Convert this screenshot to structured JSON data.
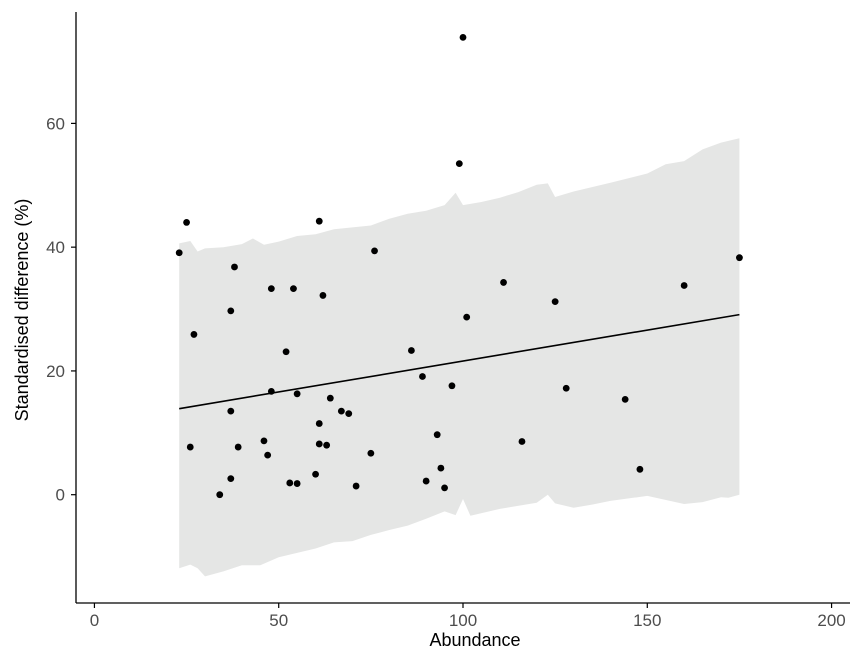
{
  "chart_data": {
    "type": "scatter",
    "title": "",
    "xlabel": "Abundance",
    "ylabel": "Standardised difference (%)",
    "xlim": [
      -5,
      205
    ],
    "ylim": [
      -17.5,
      78
    ],
    "xticks": [
      0,
      50,
      100,
      150,
      200
    ],
    "yticks": [
      0,
      20,
      40,
      60
    ],
    "grid": false,
    "colors": {
      "points": "#000000",
      "line": "#000000",
      "band": "#e5e6e5"
    },
    "points": [
      {
        "x": 23,
        "y": 39.1
      },
      {
        "x": 25,
        "y": 44.0
      },
      {
        "x": 26,
        "y": 7.7
      },
      {
        "x": 27,
        "y": 25.9
      },
      {
        "x": 34,
        "y": 0.0
      },
      {
        "x": 37,
        "y": 29.7
      },
      {
        "x": 37,
        "y": 13.5
      },
      {
        "x": 37,
        "y": 2.6
      },
      {
        "x": 38,
        "y": 36.8
      },
      {
        "x": 39,
        "y": 7.7
      },
      {
        "x": 46,
        "y": 8.7
      },
      {
        "x": 47,
        "y": 6.4
      },
      {
        "x": 48,
        "y": 33.3
      },
      {
        "x": 48,
        "y": 16.7
      },
      {
        "x": 52,
        "y": 23.1
      },
      {
        "x": 53,
        "y": 1.9
      },
      {
        "x": 54,
        "y": 33.3
      },
      {
        "x": 55,
        "y": 16.3
      },
      {
        "x": 55,
        "y": 1.8
      },
      {
        "x": 60,
        "y": 3.3
      },
      {
        "x": 61,
        "y": 44.2
      },
      {
        "x": 61,
        "y": 11.5
      },
      {
        "x": 61,
        "y": 8.2
      },
      {
        "x": 62,
        "y": 32.2
      },
      {
        "x": 63,
        "y": 8.0
      },
      {
        "x": 64,
        "y": 15.6
      },
      {
        "x": 67,
        "y": 13.5
      },
      {
        "x": 69,
        "y": 13.1
      },
      {
        "x": 71,
        "y": 1.4
      },
      {
        "x": 75,
        "y": 6.7
      },
      {
        "x": 76,
        "y": 39.4
      },
      {
        "x": 86,
        "y": 23.3
      },
      {
        "x": 89,
        "y": 19.1
      },
      {
        "x": 90,
        "y": 2.2
      },
      {
        "x": 93,
        "y": 9.7
      },
      {
        "x": 94,
        "y": 4.3
      },
      {
        "x": 95,
        "y": 1.1
      },
      {
        "x": 97,
        "y": 17.6
      },
      {
        "x": 99,
        "y": 53.5
      },
      {
        "x": 100,
        "y": 73.9
      },
      {
        "x": 101,
        "y": 28.7
      },
      {
        "x": 111,
        "y": 34.3
      },
      {
        "x": 116,
        "y": 8.6
      },
      {
        "x": 125,
        "y": 31.2
      },
      {
        "x": 128,
        "y": 17.2
      },
      {
        "x": 144,
        "y": 15.4
      },
      {
        "x": 148,
        "y": 4.1
      },
      {
        "x": 160,
        "y": 33.8
      },
      {
        "x": 175,
        "y": 38.3
      }
    ],
    "fit_line": {
      "x": [
        23,
        175
      ],
      "y": [
        13.9,
        29.1
      ]
    },
    "band": {
      "upper": [
        [
          23,
          40.6
        ],
        [
          26,
          41.0
        ],
        [
          28,
          39.3
        ],
        [
          30,
          39.8
        ],
        [
          35,
          40.0
        ],
        [
          40,
          40.5
        ],
        [
          43,
          41.4
        ],
        [
          46,
          40.4
        ],
        [
          50,
          40.9
        ],
        [
          55,
          41.8
        ],
        [
          60,
          42.1
        ],
        [
          65,
          42.9
        ],
        [
          70,
          43.2
        ],
        [
          75,
          43.5
        ],
        [
          80,
          44.6
        ],
        [
          85,
          45.4
        ],
        [
          90,
          45.9
        ],
        [
          95,
          46.8
        ],
        [
          98,
          48.8
        ],
        [
          100,
          46.8
        ],
        [
          105,
          47.3
        ],
        [
          110,
          48.0
        ],
        [
          115,
          48.9
        ],
        [
          120,
          50.1
        ],
        [
          123,
          50.3
        ],
        [
          125,
          48.1
        ],
        [
          130,
          49.0
        ],
        [
          140,
          50.4
        ],
        [
          150,
          51.9
        ],
        [
          155,
          53.4
        ],
        [
          160,
          53.9
        ],
        [
          165,
          55.8
        ],
        [
          170,
          56.9
        ],
        [
          175,
          57.6
        ]
      ],
      "lower": [
        [
          23,
          -11.9
        ],
        [
          26,
          -11.3
        ],
        [
          28,
          -11.9
        ],
        [
          30,
          -13.2
        ],
        [
          35,
          -12.4
        ],
        [
          40,
          -11.4
        ],
        [
          45,
          -11.4
        ],
        [
          50,
          -10.1
        ],
        [
          55,
          -9.4
        ],
        [
          60,
          -8.7
        ],
        [
          65,
          -7.7
        ],
        [
          70,
          -7.5
        ],
        [
          75,
          -6.5
        ],
        [
          80,
          -5.7
        ],
        [
          85,
          -5.0
        ],
        [
          90,
          -3.9
        ],
        [
          95,
          -2.7
        ],
        [
          98,
          -3.3
        ],
        [
          100,
          -0.7
        ],
        [
          102,
          -3.4
        ],
        [
          110,
          -2.3
        ],
        [
          120,
          -1.3
        ],
        [
          123,
          0.0
        ],
        [
          125,
          -1.4
        ],
        [
          130,
          -2.1
        ],
        [
          135,
          -1.6
        ],
        [
          140,
          -1.0
        ],
        [
          150,
          -0.2
        ],
        [
          160,
          -1.5
        ],
        [
          165,
          -1.2
        ],
        [
          170,
          -0.4
        ],
        [
          172,
          -0.5
        ],
        [
          175,
          0.0
        ]
      ]
    }
  }
}
